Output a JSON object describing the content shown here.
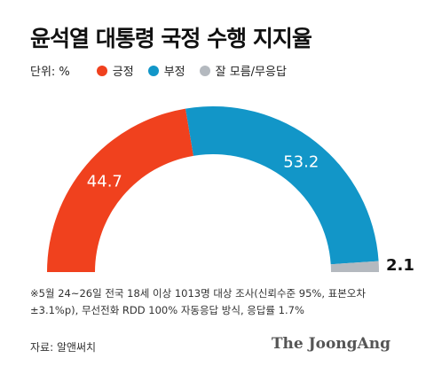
{
  "title": "윤석열 대통령 국정 수행 지지율",
  "unit_label": "단위: %",
  "legend": [
    {
      "label": "긍정",
      "color": "#f0411e"
    },
    {
      "label": "부정",
      "color": "#1296c8"
    },
    {
      "label": "잘 모름/무응답",
      "color": "#b4b9bf"
    }
  ],
  "chart_data": {
    "type": "pie",
    "categories": [
      "긍정",
      "부정",
      "잘 모름/무응답"
    ],
    "values": [
      44.7,
      53.2,
      2.1
    ],
    "labels": [
      "44.7",
      "53.2",
      "2.1"
    ],
    "colors": [
      "#f0411e",
      "#1296c8",
      "#b4b9bf"
    ]
  },
  "footnote_line1": "※5월 24~26일 전국 18세 이상 1013명 대상 조사(신뢰수준 95%, 표본오차",
  "footnote_line2": "±3.1%p), 무선전화 RDD 100% 자동응답 방식, 응답률 1.7%",
  "source": "자료: 알앤써치",
  "logo": "The JoongAng"
}
